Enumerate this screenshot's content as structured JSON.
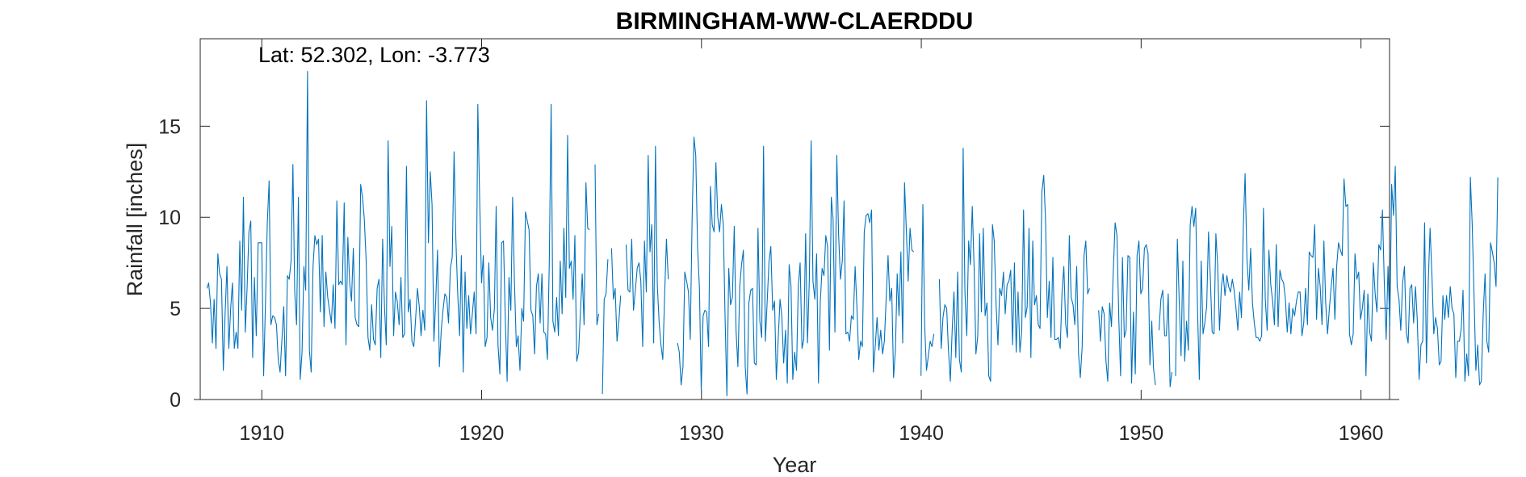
{
  "chart_data": {
    "type": "line",
    "title": "BIRMINGHAM-WW-CLAERDDU",
    "annotation": "Lat: 52.302, Lon: -3.773",
    "xlabel": "Year",
    "ylabel": "Rainfall [inches]",
    "xlim": [
      1907.2,
      1961.3
    ],
    "ylim": [
      0,
      19.8
    ],
    "xticks": [
      1910,
      1920,
      1930,
      1940,
      1950,
      1960
    ],
    "xtick_labels": [
      "1910",
      "1920",
      "1930",
      "1940",
      "1950",
      "1960"
    ],
    "yticks": [
      0,
      5,
      10,
      15
    ],
    "ytick_labels": [
      "0",
      "5",
      "10",
      "15"
    ],
    "grid": false,
    "line_color": "#0072BD",
    "series": [
      {
        "name": "",
        "start_year": 1907.5,
        "step": 0.0833,
        "values": [
          6.1,
          6.4,
          5.3,
          3.1,
          5.5,
          2.8,
          8.0,
          6.9,
          6.6,
          1.6,
          4.7,
          7.3,
          2.8,
          5.0,
          6.4,
          2.8,
          3.7,
          2.8,
          8.7,
          4.9,
          11.1,
          3.7,
          6.2,
          9.2,
          9.8,
          2.3,
          6.7,
          3.5,
          8.6,
          8.6,
          8.6,
          1.3,
          5.1,
          9.6,
          12.0,
          4.1,
          4.6,
          4.5,
          4.1,
          2.2,
          1.5,
          3.3,
          5.1,
          1.3,
          6.8,
          6.6,
          7.6,
          12.9,
          5.9,
          4.1,
          11.1,
          1.1,
          2.6,
          7.3,
          6.0,
          18.0,
          2.7,
          1.5,
          7.3,
          9.0,
          8.5,
          8.8,
          4.8,
          9.0,
          4.0,
          7.0,
          5.6,
          4.9,
          4.2,
          6.3,
          3.9,
          10.9,
          6.3,
          6.5,
          6.3,
          10.8,
          3.0,
          8.9,
          6.4,
          5.4,
          8.3,
          4.5,
          4.1,
          4.0,
          11.8,
          11.1,
          9.9,
          7.6,
          3.4,
          2.7,
          5.2,
          3.3,
          3.0,
          6.1,
          6.6,
          2.3,
          8.8,
          5.1,
          3.0,
          14.2,
          7.3,
          9.5,
          3.5,
          5.9,
          5.4,
          4.1,
          6.7,
          3.4,
          3.6,
          12.8,
          4.8,
          5.5,
          3.2,
          2.9,
          4.4,
          6.1,
          5.1,
          3.5,
          4.9,
          3.8,
          16.4,
          8.6,
          12.5,
          10.7,
          3.2,
          5.5,
          8.2,
          1.8,
          3.8,
          4.9,
          5.8,
          5.6,
          4.2,
          7.2,
          7.8,
          13.6,
          8.8,
          5.8,
          3.5,
          7.9,
          1.5,
          7.0,
          3.9,
          5.7,
          3.6,
          4.7,
          5.9,
          3.6,
          16.2,
          10.9,
          6.4,
          7.9,
          2.9,
          3.4,
          7.5,
          4.5,
          3.8,
          5.0,
          10.6,
          3.0,
          1.4,
          8.6,
          8.7,
          4.3,
          1.0,
          6.7,
          4.9,
          11.1,
          6.4,
          2.9,
          3.5,
          1.6,
          5.0,
          4.3,
          10.3,
          9.8,
          9.3,
          4.9,
          4.6,
          2.5,
          6.2,
          6.9,
          4.2,
          6.9,
          3.7,
          3.6,
          2.2,
          7.5,
          16.2,
          4.3,
          3.7,
          5.6,
          3.5,
          7.6,
          4.7,
          9.4,
          5.6,
          14.5,
          7.2,
          7.6,
          5.5,
          9.0,
          2.1,
          2.6,
          4.7,
          6.9,
          4.1,
          11.9,
          9.4,
          9.3,
          null,
          null,
          12.9,
          4.1,
          4.7,
          null,
          0.3,
          5.5,
          5.8,
          7.7,
          null,
          8.3,
          5.5,
          6.1,
          3.2,
          4.3,
          5.7,
          null,
          null,
          8.5,
          6.0,
          5.9,
          8.8,
          4.9,
          6.0,
          7.2,
          7.5,
          6.5,
          2.9,
          8.7,
          5.9,
          13.4,
          8.1,
          9.6,
          3.1,
          13.9,
          6.3,
          4.2,
          3.0,
          2.2,
          5.8,
          8.8,
          6.6,
          null,
          null,
          null,
          null,
          3.1,
          2.6,
          0.8,
          1.8,
          7.0,
          6.5,
          5.9,
          3.3,
          9.9,
          14.4,
          13.4,
          8.3,
          6.1,
          0.5,
          4.6,
          4.9,
          4.8,
          2.9,
          11.7,
          9.6,
          9.2,
          13.0,
          10.0,
          9.2,
          10.7,
          9.6,
          4.6,
          0.2,
          7.2,
          5.2,
          5.6,
          9.5,
          3.8,
          1.8,
          6.2,
          7.4,
          8.2,
          1.8,
          0.3,
          5.3,
          6.0,
          6.1,
          2.0,
          1.9,
          9.4,
          4.3,
          3.4,
          13.9,
          3.2,
          5.4,
          7.6,
          8.4,
          4.9,
          5.4,
          1.1,
          3.3,
          5.5,
          4.6,
          2.0,
          3.8,
          0.9,
          7.4,
          6.2,
          1.1,
          2.6,
          1.6,
          6.2,
          7.5,
          2.8,
          3.3,
          9.1,
          3.1,
          6.6,
          14.2,
          6.5,
          5.5,
          8.0,
          0.9,
          5.4,
          7.2,
          6.8,
          9.0,
          8.4,
          2.7,
          11.1,
          9.9,
          3.7,
          13.4,
          9.1,
          6.6,
          7.6,
          10.9,
          3.6,
          3.7,
          3.2,
          4.6,
          4.4,
          7.3,
          5.1,
          2.2,
          3.2,
          2.9,
          9.2,
          10.1,
          10.2,
          9.7,
          10.4,
          1.5,
          2.9,
          4.5,
          2.7,
          3.8,
          2.5,
          3.2,
          5.6,
          7.9,
          5.4,
          6.1,
          1.2,
          2.7,
          6.9,
          4.6,
          8.1,
          3.1,
          11.9,
          9.2,
          6.5,
          9.4,
          8.2,
          8.1,
          null,
          null,
          null,
          1.3,
          10.7,
          4.1,
          1.6,
          2.4,
          3.2,
          2.9,
          3.6,
          null,
          null,
          6.6,
          2.8,
          4.5,
          5.2,
          5.0,
          2.7,
          1.0,
          3.8,
          5.9,
          2.3,
          7.0,
          2.2,
          1.5,
          13.8,
          5.9,
          3.5,
          8.7,
          7.4,
          10.6,
          7.2,
          2.5,
          3.5,
          9.1,
          4.8,
          9.4,
          4.6,
          5.3,
          1.3,
          1.0,
          9.6,
          8.7,
          5.2,
          3.0,
          6.1,
          5.7,
          7.0,
          4.7,
          6.3,
          6.5,
          7.1,
          3.0,
          7.5,
          2.6,
          5.9,
          2.6,
          3.7,
          10.4,
          4.5,
          5.1,
          9.4,
          2.3,
          8.7,
          5.2,
          5.7,
          4.1,
          3.9,
          11.4,
          12.3,
          9.9,
          4.5,
          6.5,
          3.4,
          7.8,
          3.3,
          3.3,
          3.4,
          2.8,
          5.8,
          7.3,
          4.1,
          3.4,
          9.0,
          5.6,
          5.2,
          4.1,
          7.3,
          2.5,
          1.2,
          2.9,
          7.9,
          8.7,
          5.8,
          6.1,
          null,
          null,
          null,
          null,
          4.9,
          3.2,
          5.1,
          4.7,
          2.1,
          1.0,
          5.3,
          4.0,
          7.0,
          9.7,
          9.0,
          4.4,
          1.3,
          7.8,
          3.4,
          3.8,
          7.9,
          7.8,
          0.9,
          4.8,
          1.4,
          7.9,
          8.7,
          5.8,
          6.1,
          8.3,
          8.5,
          8.0,
          1.9,
          4.3,
          1.7,
          0.8,
          null,
          3.8,
          5.5,
          6.0,
          3.5,
          3.5,
          5.8,
          0.7,
          1.5,
          null,
          1.3,
          8.8,
          5.4,
          2.4,
          7.6,
          2.1,
          4.3,
          2.7,
          9.6,
          10.6,
          9.5,
          10.5,
          4.9,
          1.1,
          7.6,
          3.6,
          4.2,
          5.1,
          9.2,
          6.6,
          3.7,
          3.6,
          9.1,
          7.4,
          3.8,
          6.2,
          6.9,
          5.7,
          6.8,
          6.2,
          5.9,
          6.6,
          6.0,
          5.0,
          3.8,
          5.9,
          4.5,
          9.5,
          12.4,
          7.7,
          6.0,
          8.3,
          5.3,
          4.2,
          3.4,
          3.4,
          3.2,
          3.5,
          10.5,
          5.5,
          3.8,
          8.2,
          6.3,
          5.4,
          4.1,
          8.5,
          4.0,
          7.1,
          6.6,
          6.4,
          5.5,
          3.7,
          5.3,
          3.6,
          5.0,
          4.6,
          5.4,
          5.9,
          5.9,
          3.5,
          4.2,
          6.1,
          4.1,
          8.1,
          7.9,
          7.8,
          9.6,
          4.4,
          7.2,
          6.2,
          4.1,
          8.7,
          5.3,
          3.6,
          5.0,
          6.2,
          7.2,
          4.4,
          7.3,
          8.6,
          8.2,
          7.9,
          12.1,
          10.6,
          10.7,
          3.6,
          3.0,
          3.6,
          8.0,
          6.6,
          7.0,
          4.4,
          5.0,
          6.0,
          1.3,
          5.8,
          3.7,
          3.2,
          7.5,
          5.8,
          4.8,
          8.5,
          8.2,
          10.4,
          6.4,
          3.3,
          7.3,
          4.0,
          11.8,
          10.1,
          12.8,
          6.2,
          5.5,
          3.8,
          6.4,
          7.3,
          3.7,
          3.1,
          6.1,
          6.3,
          4.2,
          6.2,
          4.4,
          1.1,
          3.0,
          3.2,
          9.7,
          2.0,
          6.5,
          9.4,
          6.8,
          3.6,
          4.5,
          3.9,
          1.9,
          2.1,
          5.7,
          4.4,
          5.7,
          4.5,
          6.2,
          5.0,
          4.7,
          1.2,
          3.2,
          3.2,
          3.9,
          6.0,
          1.0,
          2.5,
          1.3,
          12.2,
          9.6,
          5.6,
          1.6,
          3.0,
          0.8,
          1.0,
          4.7,
          6.9,
          3.2,
          2.6,
          8.6,
          8.1,
          7.5,
          6.2,
          12.2
        ]
      }
    ]
  }
}
